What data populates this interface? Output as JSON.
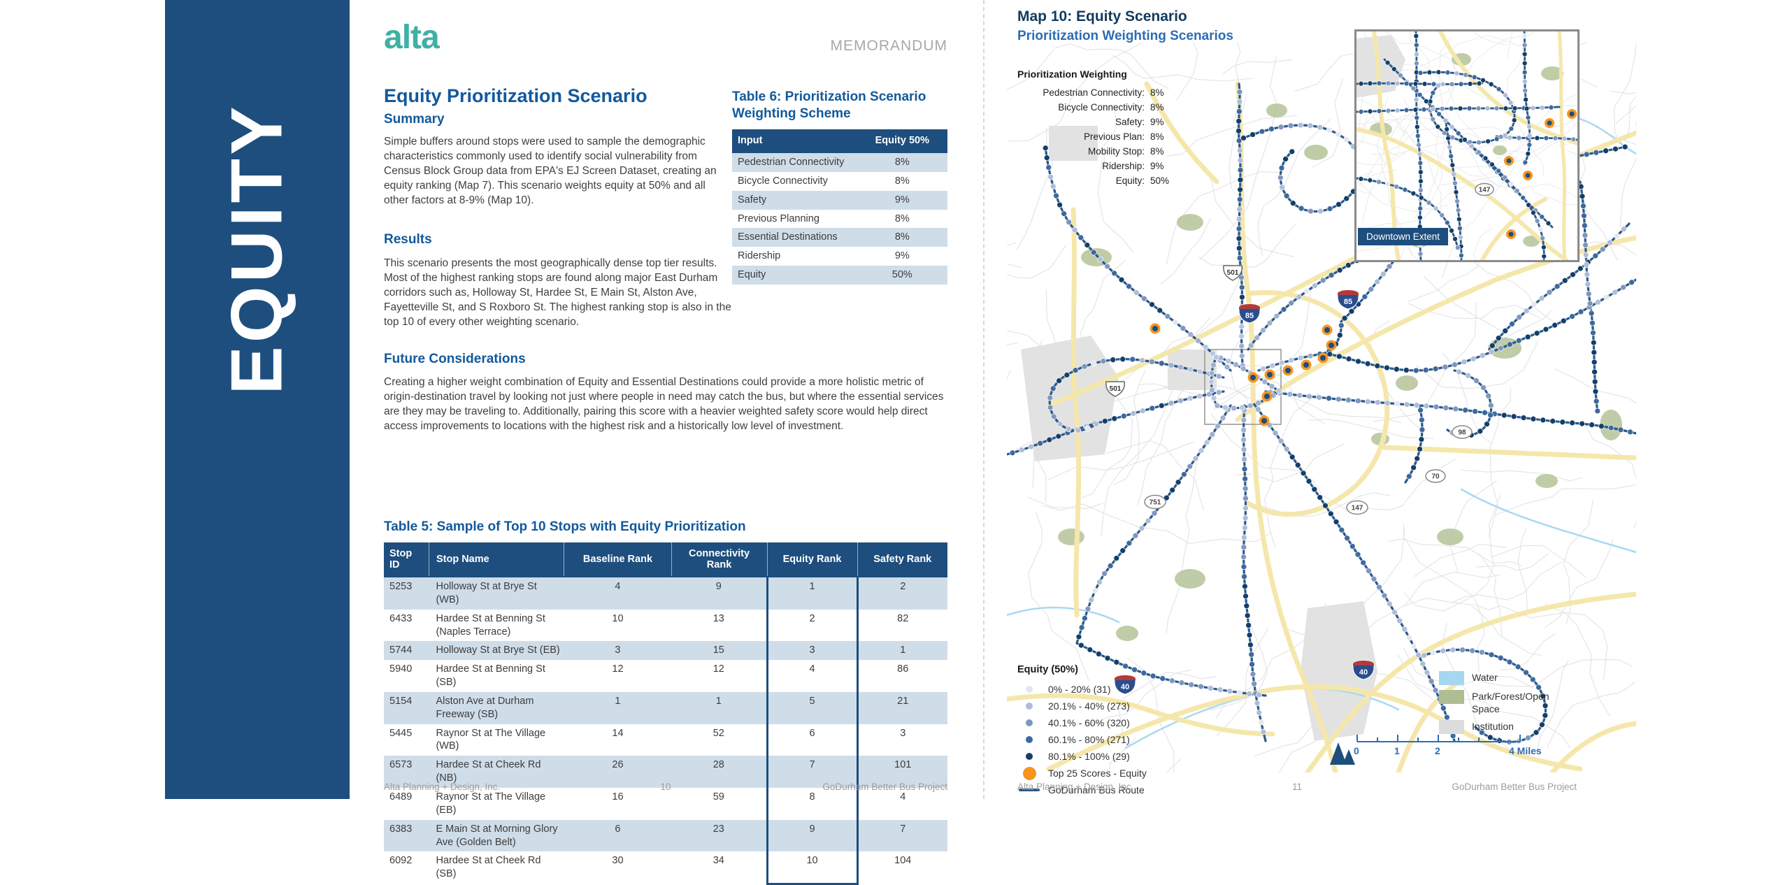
{
  "banner": {
    "text": "EQUITY"
  },
  "page_left": {
    "logo": "alta",
    "memo_label": "MEMORANDUM",
    "title": "Equity Prioritization Scenario",
    "sections": [
      {
        "heading": "Summary",
        "body": "Simple buffers around stops were used to sample the demographic characteristics commonly used to identify social vulnerability from Census Block Group data from EPA's EJ Screen Dataset, creating an equity ranking (Map 7). This scenario weights equity at 50% and all other factors at 8-9% (Map 10)."
      },
      {
        "heading": "Results",
        "body": "This scenario presents the most geographically dense top tier results. Most of the highest ranking stops are found along major East Durham corridors such as, Holloway St, Hardee St, E Main St, Alston Ave, Fayetteville St, and S Roxboro St. The highest ranking stop is also in the top 10 of every other weighting scenario."
      },
      {
        "heading": "Future Considerations",
        "body": "Creating a higher weight combination of Equity and Essential Destinations could provide a more holistic metric of origin-destination travel by looking not just where people in need may catch the bus, but where the essential services are they may be traveling to. Additionally, pairing this score with a heavier weighted safety score would help direct access improvements to locations with the highest risk and a historically low level of investment."
      }
    ],
    "table6": {
      "title": "Table 6: Prioritization Scenario Weighting Scheme",
      "columns": [
        "Input",
        "Equity 50%"
      ],
      "rows": [
        [
          "Pedestrian Connectivity",
          "8%"
        ],
        [
          "Bicycle Connectivity",
          "8%"
        ],
        [
          "Safety",
          "9%"
        ],
        [
          "Previous Planning",
          "8%"
        ],
        [
          "Essential Destinations",
          "8%"
        ],
        [
          "Ridership",
          "9%"
        ],
        [
          "Equity",
          "50%"
        ]
      ]
    },
    "table5": {
      "title": "Table 5: Sample of Top 10 Stops with Equity Prioritization",
      "columns": [
        "Stop ID",
        "Stop Name",
        "Baseline Rank",
        "Connectivity Rank",
        "Equity Rank",
        "Safety Rank"
      ],
      "rows": [
        [
          "5253",
          "Holloway St at Brye St (WB)",
          "4",
          "9",
          "1",
          "2"
        ],
        [
          "6433",
          "Hardee St at Benning St (Naples Terrace)",
          "10",
          "13",
          "2",
          "82"
        ],
        [
          "5744",
          "Holloway St at Brye St (EB)",
          "3",
          "15",
          "3",
          "1"
        ],
        [
          "5940",
          "Hardee St at Benning St (SB)",
          "12",
          "12",
          "4",
          "86"
        ],
        [
          "5154",
          "Alston Ave at Durham Freeway (SB)",
          "1",
          "1",
          "5",
          "21"
        ],
        [
          "5445",
          "Raynor St at The Village (WB)",
          "14",
          "52",
          "6",
          "3"
        ],
        [
          "6573",
          "Hardee St at Cheek Rd (NB)",
          "26",
          "28",
          "7",
          "101"
        ],
        [
          "6489",
          "Raynor St at The Village (EB)",
          "16",
          "59",
          "8",
          "4"
        ],
        [
          "6383",
          "E Main St at Morning Glory Ave (Golden Belt)",
          "6",
          "23",
          "9",
          "7"
        ],
        [
          "6092",
          "Hardee St at Cheek Rd (SB)",
          "30",
          "34",
          "10",
          "104"
        ]
      ]
    },
    "footer": {
      "left": "Alta Planning + Design, Inc.",
      "page": "10",
      "right": "GoDurham Better Bus Project"
    }
  },
  "page_right": {
    "map_title": "Map 10: Equity Scenario",
    "map_subtitle": "Prioritization Weighting Scenarios",
    "weighting": {
      "title": "Prioritization Weighting",
      "items": [
        {
          "label": "Pedestrian Connectivity:",
          "value": "8%"
        },
        {
          "label": "Bicycle Connectivity:",
          "value": "8%"
        },
        {
          "label": "Safety:",
          "value": "9%"
        },
        {
          "label": "Previous Plan:",
          "value": "8%"
        },
        {
          "label": "Mobility Stop:",
          "value": "8%"
        },
        {
          "label": "Ridership:",
          "value": "9%"
        },
        {
          "label": "Equity:",
          "value": "50%"
        }
      ]
    },
    "inset_label": "Downtown Extent",
    "legend_equity": {
      "title": "Equity (50%)",
      "items": [
        {
          "label": "0% - 20% (31)",
          "color": "#e4e6f0"
        },
        {
          "label": "20.1% - 40% (273)",
          "color": "#aebcd8"
        },
        {
          "label": "40.1% - 60% (320)",
          "color": "#7d96c0"
        },
        {
          "label": "60.1% - 80% (271)",
          "color": "#3c699f"
        },
        {
          "label": "80.1% - 100% (29)",
          "color": "#123f6b"
        }
      ],
      "top25": {
        "label": "Top 25 Scores - Equity",
        "color": "#f7941e"
      },
      "route": {
        "label": "GoDurham Bus Route",
        "color": "#2b5886"
      }
    },
    "legend_areas": [
      {
        "label": "Water",
        "color": "#a5d8f0"
      },
      {
        "label": "Park/Forest/Open Space",
        "color": "#aebd92"
      },
      {
        "label": "Institution",
        "color": "#dcdcdc"
      }
    ],
    "scalebar": {
      "labels": [
        "0",
        "1",
        "2",
        "4 Miles"
      ]
    },
    "shields": [
      {
        "num": "501",
        "type": "us"
      },
      {
        "num": "85",
        "type": "interstate"
      },
      {
        "num": "85",
        "type": "interstate"
      },
      {
        "num": "501",
        "type": "us"
      },
      {
        "num": "751",
        "type": "oval"
      },
      {
        "num": "147",
        "type": "oval"
      },
      {
        "num": "98",
        "type": "oval"
      },
      {
        "num": "70",
        "type": "oval"
      },
      {
        "num": "40",
        "type": "interstate"
      },
      {
        "num": "40",
        "type": "interstate"
      },
      {
        "num": "147",
        "type": "oval"
      }
    ],
    "footer": {
      "left": "Alta Planning + Design, Inc.",
      "page": "11",
      "right": "GoDurham Better Bus Project"
    }
  }
}
